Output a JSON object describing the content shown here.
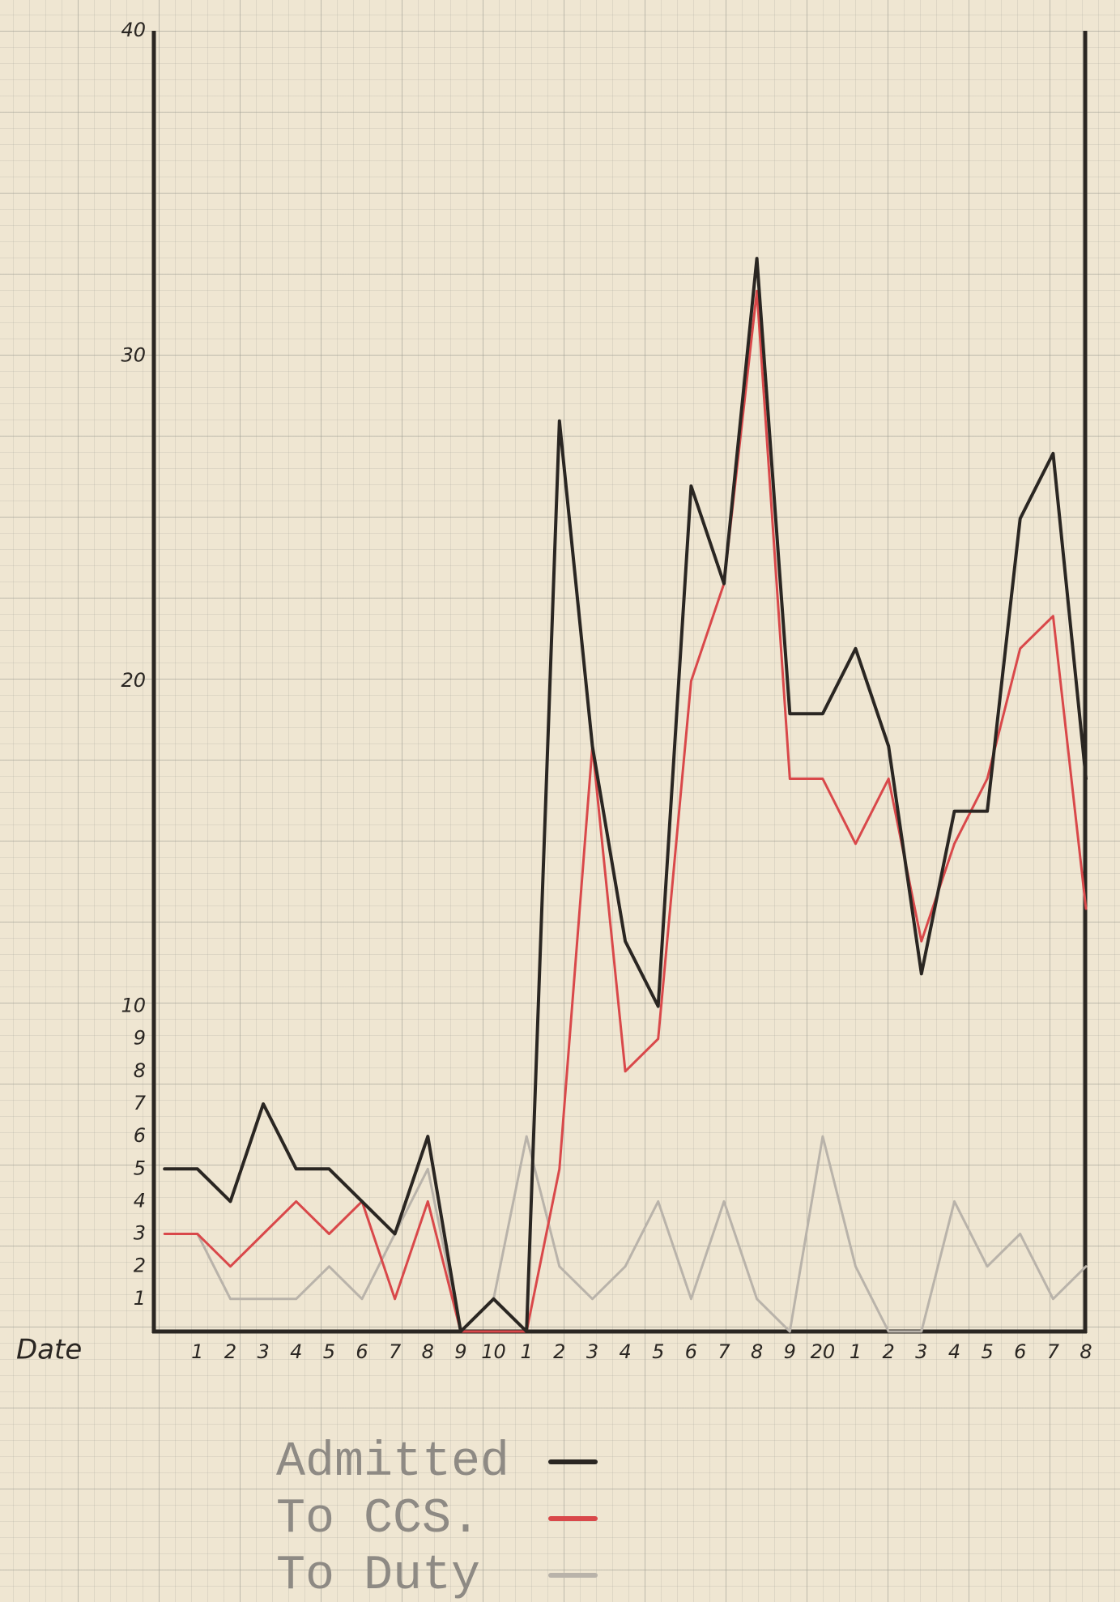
{
  "chart_data": {
    "type": "line",
    "x_label": "Date",
    "categories": [
      null,
      "1",
      "2",
      "3",
      "4",
      "5",
      "6",
      "7",
      "8",
      "9",
      "10",
      "1",
      "2",
      "3",
      "4",
      "5",
      "6",
      "7",
      "8",
      "9",
      "20",
      "1",
      "2",
      "3",
      "4",
      "5",
      "6",
      "7",
      "8"
    ],
    "series": [
      {
        "name": "Admitted",
        "color": "#2a2622",
        "values": [
          5,
          5,
          4,
          7,
          5,
          5,
          4,
          3,
          6,
          0,
          1,
          0,
          28,
          18,
          12,
          10,
          26,
          23,
          33,
          19,
          19,
          21,
          18,
          11,
          16,
          16,
          25,
          27,
          17
        ]
      },
      {
        "name": "To CCS.",
        "color": "#d9484a",
        "values": [
          3,
          3,
          2,
          3,
          4,
          3,
          4,
          1,
          4,
          0,
          0,
          0,
          5,
          18,
          8,
          9,
          20,
          23,
          32,
          17,
          17,
          15,
          17,
          12,
          15,
          17,
          21,
          22,
          13
        ]
      },
      {
        "name": "To Duty",
        "color": "#b9b3aa",
        "values": [
          null,
          3,
          1,
          1,
          1,
          2,
          1,
          3,
          5,
          0,
          1,
          6,
          2,
          1,
          2,
          4,
          1,
          4,
          1,
          0,
          6,
          2,
          0,
          0,
          4,
          2,
          3,
          1,
          2
        ]
      }
    ],
    "ylim": [
      0,
      40
    ],
    "yticks": [
      1,
      2,
      3,
      4,
      5,
      6,
      7,
      8,
      9,
      10,
      20,
      30,
      40
    ]
  }
}
